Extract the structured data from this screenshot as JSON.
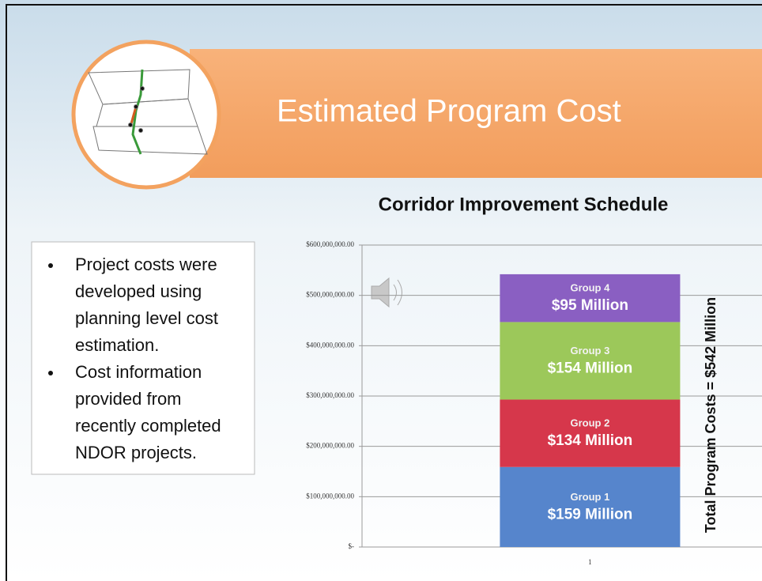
{
  "slide": {
    "title": "Estimated Program Cost",
    "bullets": [
      [
        "Project costs were",
        "developed using",
        "planning level cost",
        "estimation."
      ],
      [
        "Cost information",
        "provided from",
        "recently completed",
        "NDOR projects."
      ]
    ]
  },
  "chart_data": {
    "type": "stacked_bar",
    "title": "Corridor Improvement Schedule",
    "categories": [
      "1"
    ],
    "series": [
      {
        "name": "Group 1",
        "color": "#5685cc",
        "values": [
          159000000
        ],
        "value_labels": [
          "$159 Million"
        ]
      },
      {
        "name": "Group 2",
        "color": "#d6374b",
        "values": [
          134000000
        ],
        "value_labels": [
          "$134 Million"
        ]
      },
      {
        "name": "Group 3",
        "color": "#9cc85a",
        "values": [
          154000000
        ],
        "value_labels": [
          "$154 Million"
        ]
      },
      {
        "name": "Group 4",
        "color": "#8a5fc2",
        "values": [
          95000000
        ],
        "value_labels": [
          "$95 Million"
        ]
      }
    ],
    "annotation": "Total Program Costs = $542 Million",
    "ylim": [
      0,
      600000000
    ],
    "yticks": [
      {
        "value": 0,
        "label": "$-"
      },
      {
        "value": 100000000,
        "label": "$100,000,000.00"
      },
      {
        "value": 200000000,
        "label": "$200,000,000.00"
      },
      {
        "value": 300000000,
        "label": "$300,000,000.00"
      },
      {
        "value": 400000000,
        "label": "$400,000,000.00"
      },
      {
        "value": 500000000,
        "label": "$500,000,000.00"
      },
      {
        "value": 600000000,
        "label": "$600,000,000.00"
      }
    ],
    "grid": true
  }
}
